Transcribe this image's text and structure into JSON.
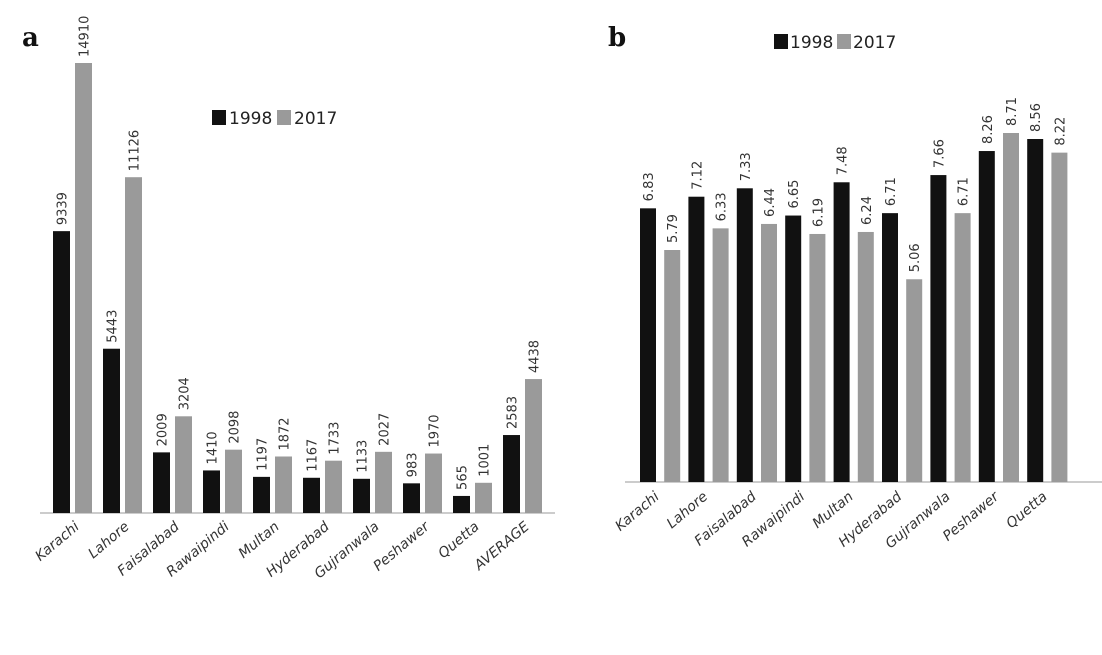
{
  "chart_data": [
    {
      "type": "bar",
      "panel_label": "a",
      "title": "",
      "xlabel": "",
      "ylabel": "",
      "categories": [
        "Karachi",
        "Lahore",
        "Faisalabad",
        "Rawaipindi",
        "Multan",
        "Hyderabad",
        "Gujranwala",
        "Peshawer",
        "Quetta",
        "AVERAGE"
      ],
      "series": [
        {
          "name": "1998",
          "values": [
            9339,
            5443,
            2009,
            1410,
            1197,
            1167,
            1133,
            983,
            565,
            2583
          ]
        },
        {
          "name": "2017",
          "values": [
            14910,
            11126,
            3204,
            2098,
            1872,
            1733,
            2027,
            1970,
            1001,
            4438
          ]
        }
      ],
      "ylim": [
        0,
        15000
      ],
      "grid": false,
      "legend_position": "top-right"
    },
    {
      "type": "bar",
      "panel_label": "b",
      "title": "",
      "xlabel": "",
      "ylabel": "",
      "categories": [
        "Karachi",
        "Lahore",
        "Faisalabad",
        "Rawaipindi",
        "Multan",
        "Hyderabad",
        "Gujranwala",
        "Peshawer",
        "Quetta"
      ],
      "bars": [
        {
          "series": "1998",
          "value": 6.83
        },
        {
          "series": "2017",
          "value": 5.79
        },
        {
          "series": "1998",
          "value": 7.12
        },
        {
          "series": "2017",
          "value": 6.33
        },
        {
          "series": "1998",
          "value": 7.33
        },
        {
          "series": "2017",
          "value": 6.44
        },
        {
          "series": "1998",
          "value": 6.65
        },
        {
          "series": "2017",
          "value": 6.19
        },
        {
          "series": "1998",
          "value": 7.48
        },
        {
          "series": "2017",
          "value": 6.24
        },
        {
          "series": "1998",
          "value": 6.71
        },
        {
          "series": "2017",
          "value": 5.06
        },
        {
          "series": "1998",
          "value": 7.66
        },
        {
          "series": "2017",
          "value": 6.71
        },
        {
          "series": "1998",
          "value": 8.26
        },
        {
          "series": "2017",
          "value": 8.71
        },
        {
          "series": "1998",
          "value": 8.56
        },
        {
          "series": "2017",
          "value": 8.22
        }
      ],
      "series_names": [
        "1998",
        "2017"
      ],
      "ylim": [
        0,
        9
      ],
      "grid": false,
      "legend_position": "top"
    }
  ],
  "colors": {
    "1998": "#111111",
    "2017": "#9a9a9a"
  }
}
